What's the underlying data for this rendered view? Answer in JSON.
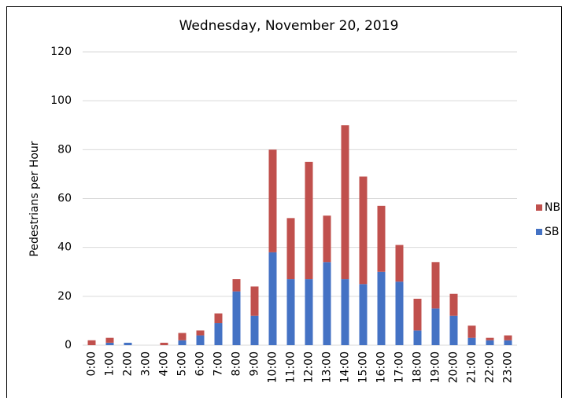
{
  "chart_data": {
    "type": "stacked_bar",
    "title": "Wednesday, November 20, 2019",
    "y_label": "Pedestrians per Hour",
    "categories": [
      "0:00",
      "1:00",
      "2:00",
      "3:00",
      "4:00",
      "5:00",
      "6:00",
      "7:00",
      "8:00",
      "9:00",
      "10:00",
      "11:00",
      "12:00",
      "13:00",
      "14:00",
      "15:00",
      "16:00",
      "17:00",
      "18:00",
      "19:00",
      "20:00",
      "21:00",
      "22:00",
      "23:00"
    ],
    "series": [
      {
        "name": "SB",
        "color": "#4472c4",
        "values": [
          0,
          1,
          1,
          0,
          0,
          2,
          4,
          9,
          22,
          12,
          38,
          27,
          27,
          34,
          27,
          25,
          30,
          26,
          6,
          15,
          12,
          3,
          2,
          2
        ]
      },
      {
        "name": "NB",
        "color": "#c0504d",
        "values": [
          2,
          2,
          0,
          0,
          1,
          3,
          2,
          4,
          5,
          12,
          42,
          25,
          48,
          19,
          63,
          44,
          27,
          15,
          13,
          19,
          9,
          5,
          1,
          2
        ]
      }
    ],
    "ylim": [
      0,
      120
    ],
    "yticks": [
      0,
      20,
      40,
      60,
      80,
      100,
      120
    ],
    "grid": true,
    "legend": "right"
  }
}
